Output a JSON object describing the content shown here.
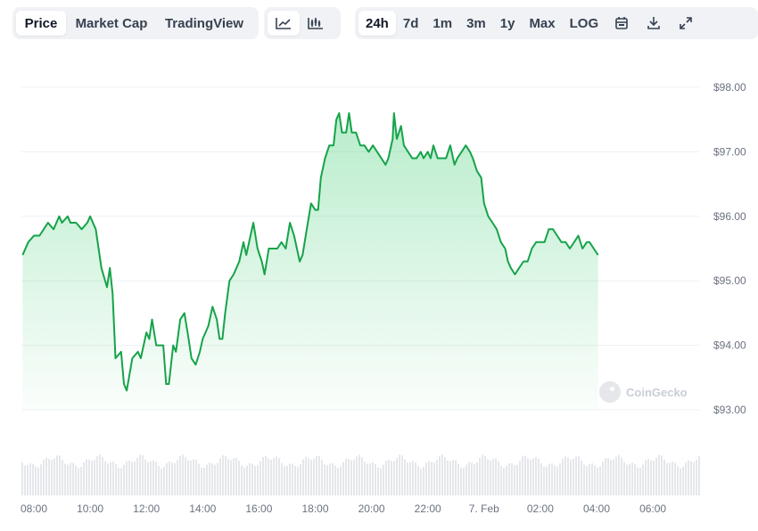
{
  "toolbar": {
    "metric_tabs": [
      "Price",
      "Market Cap",
      "TradingView"
    ],
    "active_metric": "Price",
    "chart_style_icons": [
      "line-chart-icon",
      "candlestick-chart-icon"
    ],
    "range_tabs": [
      "24h",
      "7d",
      "1m",
      "3m",
      "1y",
      "Max",
      "LOG"
    ],
    "active_range": "24h",
    "tool_icons": [
      "calendar-icon",
      "download-icon",
      "fullscreen-icon"
    ]
  },
  "watermark": "CoinGecko",
  "colors": {
    "line": "#16a34a",
    "fill": "#22c55e",
    "volume": "#e5e7eb",
    "grid": "#eef0f3",
    "axis_text": "#6b7280"
  },
  "chart_data": {
    "type": "area",
    "x_ticks": [
      "08:00",
      "10:00",
      "12:00",
      "14:00",
      "16:00",
      "18:00",
      "20:00",
      "22:00",
      "7. Feb",
      "02:00",
      "04:00",
      "06:00"
    ],
    "y_ticks": [
      "$93.00",
      "$94.00",
      "$95.00",
      "$96.00",
      "$97.00",
      "$98.00"
    ],
    "ylim": [
      93,
      98
    ],
    "x_hours": [
      0,
      24
    ],
    "grid": true,
    "series": [
      {
        "values": [
          [
            -0.4,
            95.4
          ],
          [
            -0.2,
            95.6
          ],
          [
            0.0,
            95.7
          ],
          [
            0.2,
            95.7
          ],
          [
            0.5,
            95.9
          ],
          [
            0.7,
            95.8
          ],
          [
            0.9,
            96.0
          ],
          [
            1.0,
            95.9
          ],
          [
            1.2,
            96.0
          ],
          [
            1.3,
            95.9
          ],
          [
            1.5,
            95.9
          ],
          [
            1.7,
            95.8
          ],
          [
            1.9,
            95.9
          ],
          [
            2.0,
            96.0
          ],
          [
            2.2,
            95.8
          ],
          [
            2.4,
            95.2
          ],
          [
            2.6,
            94.9
          ],
          [
            2.7,
            95.2
          ],
          [
            2.8,
            94.8
          ],
          [
            2.9,
            93.8
          ],
          [
            3.1,
            93.9
          ],
          [
            3.2,
            93.4
          ],
          [
            3.3,
            93.3
          ],
          [
            3.5,
            93.8
          ],
          [
            3.7,
            93.9
          ],
          [
            3.8,
            93.8
          ],
          [
            4.0,
            94.2
          ],
          [
            4.1,
            94.1
          ],
          [
            4.2,
            94.4
          ],
          [
            4.35,
            94.0
          ],
          [
            4.5,
            94.0
          ],
          [
            4.6,
            94.0
          ],
          [
            4.7,
            93.4
          ],
          [
            4.8,
            93.4
          ],
          [
            4.95,
            94.0
          ],
          [
            5.05,
            93.9
          ],
          [
            5.2,
            94.4
          ],
          [
            5.35,
            94.5
          ],
          [
            5.5,
            94.1
          ],
          [
            5.6,
            93.8
          ],
          [
            5.75,
            93.7
          ],
          [
            5.9,
            93.9
          ],
          [
            6.0,
            94.1
          ],
          [
            6.1,
            94.2
          ],
          [
            6.2,
            94.3
          ],
          [
            6.35,
            94.6
          ],
          [
            6.5,
            94.4
          ],
          [
            6.6,
            94.1
          ],
          [
            6.7,
            94.1
          ],
          [
            6.8,
            94.5
          ],
          [
            6.95,
            95.0
          ],
          [
            7.1,
            95.1
          ],
          [
            7.3,
            95.3
          ],
          [
            7.45,
            95.6
          ],
          [
            7.55,
            95.4
          ],
          [
            7.7,
            95.7
          ],
          [
            7.8,
            95.9
          ],
          [
            7.95,
            95.5
          ],
          [
            8.1,
            95.3
          ],
          [
            8.2,
            95.1
          ],
          [
            8.35,
            95.5
          ],
          [
            8.5,
            95.5
          ],
          [
            8.65,
            95.5
          ],
          [
            8.8,
            95.6
          ],
          [
            8.95,
            95.5
          ],
          [
            9.1,
            95.9
          ],
          [
            9.25,
            95.7
          ],
          [
            9.45,
            95.3
          ],
          [
            9.55,
            95.4
          ],
          [
            9.7,
            95.8
          ],
          [
            9.85,
            96.2
          ],
          [
            10.0,
            96.1
          ],
          [
            10.1,
            96.1
          ],
          [
            10.2,
            96.6
          ],
          [
            10.35,
            96.9
          ],
          [
            10.5,
            97.1
          ],
          [
            10.65,
            97.1
          ],
          [
            10.75,
            97.5
          ],
          [
            10.85,
            97.6
          ],
          [
            10.95,
            97.3
          ],
          [
            11.1,
            97.3
          ],
          [
            11.2,
            97.6
          ],
          [
            11.3,
            97.3
          ],
          [
            11.45,
            97.3
          ],
          [
            11.6,
            97.1
          ],
          [
            11.75,
            97.1
          ],
          [
            11.9,
            97.0
          ],
          [
            12.05,
            97.1
          ],
          [
            12.2,
            97.0
          ],
          [
            12.35,
            96.9
          ],
          [
            12.5,
            96.8
          ],
          [
            12.6,
            96.9
          ],
          [
            12.75,
            97.2
          ],
          [
            12.8,
            97.6
          ],
          [
            12.9,
            97.2
          ],
          [
            13.05,
            97.4
          ],
          [
            13.15,
            97.1
          ],
          [
            13.3,
            97.0
          ],
          [
            13.45,
            96.9
          ],
          [
            13.6,
            96.9
          ],
          [
            13.75,
            97.0
          ],
          [
            13.85,
            96.9
          ],
          [
            14.0,
            97.0
          ],
          [
            14.1,
            96.9
          ],
          [
            14.2,
            97.1
          ],
          [
            14.35,
            96.9
          ],
          [
            14.5,
            96.9
          ],
          [
            14.65,
            96.9
          ],
          [
            14.8,
            97.1
          ],
          [
            14.95,
            96.8
          ],
          [
            15.05,
            96.9
          ],
          [
            15.2,
            97.0
          ],
          [
            15.35,
            97.1
          ],
          [
            15.5,
            97.0
          ],
          [
            15.6,
            96.9
          ],
          [
            15.75,
            96.7
          ],
          [
            15.9,
            96.6
          ],
          [
            16.0,
            96.2
          ],
          [
            16.15,
            96.0
          ],
          [
            16.3,
            95.9
          ],
          [
            16.45,
            95.8
          ],
          [
            16.6,
            95.6
          ],
          [
            16.75,
            95.5
          ],
          [
            16.85,
            95.3
          ],
          [
            16.95,
            95.2
          ],
          [
            17.1,
            95.1
          ],
          [
            17.25,
            95.2
          ],
          [
            17.4,
            95.3
          ],
          [
            17.55,
            95.3
          ],
          [
            17.7,
            95.5
          ],
          [
            17.85,
            95.6
          ],
          [
            18.0,
            95.6
          ],
          [
            18.15,
            95.6
          ],
          [
            18.3,
            95.8
          ],
          [
            18.45,
            95.8
          ],
          [
            18.6,
            95.7
          ],
          [
            18.75,
            95.6
          ],
          [
            18.9,
            95.6
          ],
          [
            19.05,
            95.5
          ],
          [
            19.2,
            95.6
          ],
          [
            19.35,
            95.7
          ],
          [
            19.5,
            95.5
          ],
          [
            19.65,
            95.6
          ],
          [
            19.75,
            95.6
          ],
          [
            19.9,
            95.5
          ],
          [
            20.05,
            95.4
          ]
        ]
      }
    ]
  }
}
